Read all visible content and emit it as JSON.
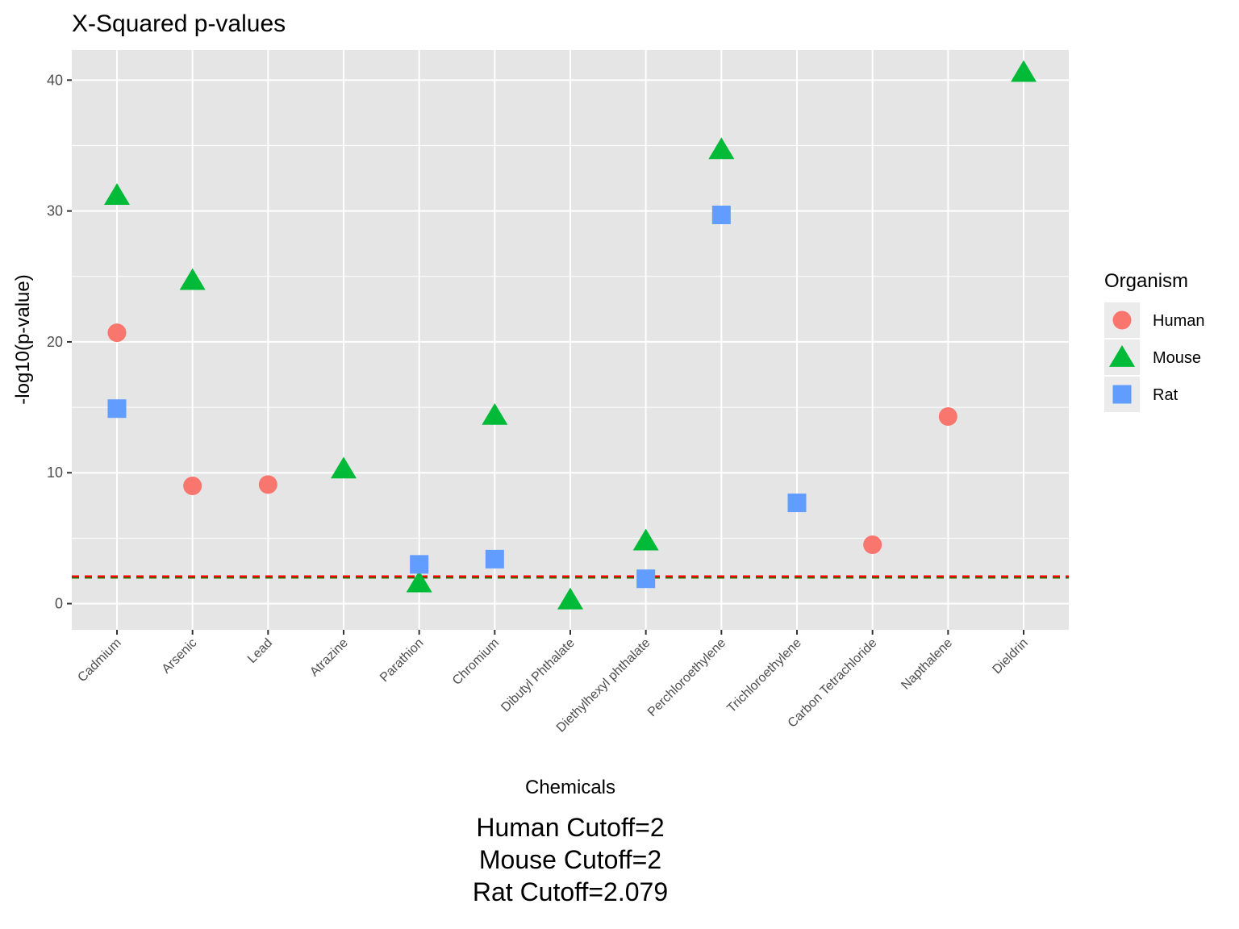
{
  "chart_data": {
    "type": "scatter",
    "title": "X-Squared p-values",
    "xlabel": "Chemicals",
    "ylabel": "-log10(p-value)",
    "ylim": [
      -2,
      42.3
    ],
    "yticks": [
      0,
      10,
      20,
      30,
      40
    ],
    "grid": true,
    "categories": [
      "Cadmium",
      "Arsenic",
      "Lead",
      "Atrazine",
      "Parathion",
      "Chromium",
      "Dibutyl Phthalate",
      "Diethylhexyl phthalate",
      "Perchloroethylene",
      "Trichloroethylene",
      "Carbon Tetrachloride",
      "Napthalene",
      "Dieldrin"
    ],
    "legend": {
      "title": "Organism",
      "position": "right"
    },
    "series": [
      {
        "name": "Human",
        "shape": "circle",
        "color": "#F8766D",
        "points": [
          [
            "Cadmium",
            20.7
          ],
          [
            "Arsenic",
            9.0
          ],
          [
            "Lead",
            9.1
          ],
          [
            "Carbon Tetrachloride",
            4.5
          ],
          [
            "Napthalene",
            14.3
          ]
        ]
      },
      {
        "name": "Mouse",
        "shape": "triangle",
        "color": "#00BA38",
        "points": [
          [
            "Cadmium",
            31.2
          ],
          [
            "Arsenic",
            24.7
          ],
          [
            "Atrazine",
            10.3
          ],
          [
            "Parathion",
            1.6
          ],
          [
            "Chromium",
            14.4
          ],
          [
            "Dibutyl Phthalate",
            0.3
          ],
          [
            "Diethylhexyl phthalate",
            4.8
          ],
          [
            "Perchloroethylene",
            34.7
          ],
          [
            "Dieldrin",
            40.6
          ]
        ]
      },
      {
        "name": "Rat",
        "shape": "square",
        "color": "#619CFF",
        "points": [
          [
            "Cadmium",
            14.9
          ],
          [
            "Parathion",
            3.0
          ],
          [
            "Chromium",
            3.4
          ],
          [
            "Diethylhexyl phthalate",
            1.9
          ],
          [
            "Perchloroethylene",
            29.7
          ],
          [
            "Trichloroethylene",
            7.7
          ]
        ]
      }
    ],
    "cutoff_lines": [
      {
        "name": "Human",
        "value": 2,
        "color": "#FF0000",
        "style": "dashed"
      },
      {
        "name": "Mouse",
        "value": 2,
        "color": "#008000",
        "style": "dashed"
      },
      {
        "name": "Rat",
        "value": 2.079,
        "color": "#FF0000",
        "style": "dashed"
      }
    ],
    "caption": [
      "Human Cutoff=2",
      "Mouse Cutoff=2",
      "Rat Cutoff=2.079"
    ]
  },
  "colors": {
    "panel_background": "#E5E5E5",
    "grid": "#FFFFFF",
    "legend_key_background": "#EBEBEB"
  }
}
